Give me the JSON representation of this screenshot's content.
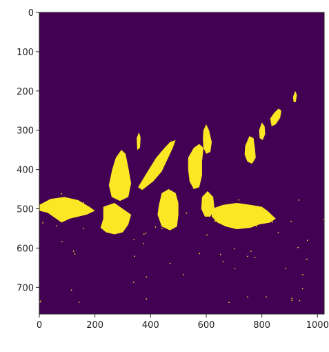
{
  "chart_data": {
    "type": "heatmap",
    "title": "",
    "xlabel": "",
    "ylabel": "",
    "xlim": [
      0,
      1024
    ],
    "ylim": [
      768,
      0
    ],
    "colors": {
      "background": "#440154",
      "foreground": "#fde725"
    },
    "x_ticks": [
      {
        "value": 0,
        "label": "0"
      },
      {
        "value": 200,
        "label": "200"
      },
      {
        "value": 400,
        "label": "400"
      },
      {
        "value": 600,
        "label": "600"
      },
      {
        "value": 800,
        "label": "800"
      },
      {
        "value": 1000,
        "label": "1000"
      }
    ],
    "y_ticks": [
      {
        "value": 0,
        "label": "0"
      },
      {
        "value": 100,
        "label": "100"
      },
      {
        "value": 200,
        "label": "200"
      },
      {
        "value": 300,
        "label": "300"
      },
      {
        "value": 400,
        "label": "400"
      },
      {
        "value": 500,
        "label": "500"
      },
      {
        "value": 600,
        "label": "600"
      },
      {
        "value": 700,
        "label": "700"
      }
    ],
    "regions": [
      {
        "name": "bird-far-left",
        "points": [
          [
            0,
            490
          ],
          [
            40,
            475
          ],
          [
            90,
            470
          ],
          [
            140,
            478
          ],
          [
            180,
            495
          ],
          [
            200,
            505
          ],
          [
            170,
            515
          ],
          [
            140,
            520
          ],
          [
            110,
            525
          ],
          [
            80,
            535
          ],
          [
            60,
            525
          ],
          [
            30,
            510
          ],
          [
            0,
            505
          ]
        ]
      },
      {
        "name": "bird-front-center-left",
        "points": [
          [
            230,
            495
          ],
          [
            270,
            485
          ],
          [
            300,
            500
          ],
          [
            330,
            515
          ],
          [
            320,
            540
          ],
          [
            300,
            560
          ],
          [
            270,
            565
          ],
          [
            240,
            560
          ],
          [
            220,
            548
          ],
          [
            230,
            525
          ]
        ]
      },
      {
        "name": "bird-upright-center",
        "points": [
          [
            275,
            370
          ],
          [
            295,
            350
          ],
          [
            310,
            360
          ],
          [
            320,
            395
          ],
          [
            330,
            435
          ],
          [
            320,
            470
          ],
          [
            290,
            480
          ],
          [
            260,
            470
          ],
          [
            250,
            440
          ],
          [
            262,
            400
          ]
        ]
      },
      {
        "name": "bird-diagonal-left",
        "points": [
          [
            355,
            445
          ],
          [
            385,
            410
          ],
          [
            420,
            370
          ],
          [
            450,
            345
          ],
          [
            470,
            330
          ],
          [
            490,
            325
          ],
          [
            480,
            345
          ],
          [
            460,
            375
          ],
          [
            440,
            405
          ],
          [
            410,
            430
          ],
          [
            370,
            452
          ]
        ]
      },
      {
        "name": "bird-center",
        "points": [
          [
            430,
            490
          ],
          [
            440,
            460
          ],
          [
            465,
            450
          ],
          [
            490,
            460
          ],
          [
            500,
            485
          ],
          [
            500,
            515
          ],
          [
            495,
            545
          ],
          [
            470,
            555
          ],
          [
            440,
            545
          ],
          [
            425,
            515
          ]
        ]
      },
      {
        "name": "bird-center-right-tall",
        "points": [
          [
            535,
            370
          ],
          [
            555,
            345
          ],
          [
            575,
            335
          ],
          [
            590,
            345
          ],
          [
            585,
            380
          ],
          [
            585,
            415
          ],
          [
            575,
            445
          ],
          [
            555,
            450
          ],
          [
            540,
            430
          ],
          [
            535,
            400
          ]
        ]
      },
      {
        "name": "bird-back-small",
        "points": [
          [
            590,
            300
          ],
          [
            600,
            285
          ],
          [
            610,
            300
          ],
          [
            620,
            330
          ],
          [
            615,
            355
          ],
          [
            600,
            360
          ],
          [
            590,
            345
          ],
          [
            588,
            320
          ]
        ]
      },
      {
        "name": "bird-pecking-right",
        "points": [
          [
            620,
            500
          ],
          [
            660,
            490
          ],
          [
            710,
            485
          ],
          [
            760,
            490
          ],
          [
            800,
            495
          ],
          [
            820,
            505
          ],
          [
            850,
            525
          ],
          [
            830,
            535
          ],
          [
            790,
            540
          ],
          [
            760,
            548
          ],
          [
            710,
            552
          ],
          [
            670,
            545
          ],
          [
            640,
            535
          ],
          [
            620,
            520
          ]
        ]
      },
      {
        "name": "bird-pecking-right-head",
        "points": [
          [
            585,
            470
          ],
          [
            605,
            455
          ],
          [
            625,
            470
          ],
          [
            630,
            500
          ],
          [
            615,
            520
          ],
          [
            595,
            520
          ],
          [
            582,
            500
          ]
        ]
      },
      {
        "name": "bird-right-standing",
        "points": [
          [
            740,
            340
          ],
          [
            755,
            315
          ],
          [
            770,
            320
          ],
          [
            775,
            345
          ],
          [
            778,
            370
          ],
          [
            765,
            385
          ],
          [
            748,
            380
          ],
          [
            738,
            362
          ]
        ]
      },
      {
        "name": "bird-far-right-1",
        "points": [
          [
            790,
            300
          ],
          [
            800,
            280
          ],
          [
            810,
            290
          ],
          [
            812,
            310
          ],
          [
            803,
            325
          ],
          [
            792,
            320
          ]
        ]
      },
      {
        "name": "bird-far-right-2",
        "points": [
          [
            830,
            270
          ],
          [
            845,
            255
          ],
          [
            860,
            245
          ],
          [
            870,
            250
          ],
          [
            866,
            268
          ],
          [
            850,
            285
          ],
          [
            835,
            290
          ]
        ]
      },
      {
        "name": "speck-top-right",
        "points": [
          [
            912,
            215
          ],
          [
            920,
            200
          ],
          [
            926,
            210
          ],
          [
            922,
            228
          ],
          [
            914,
            228
          ]
        ]
      },
      {
        "name": "speck-mid",
        "points": [
          [
            350,
            320
          ],
          [
            358,
            305
          ],
          [
            364,
            318
          ],
          [
            362,
            345
          ],
          [
            352,
            350
          ]
        ]
      }
    ]
  }
}
